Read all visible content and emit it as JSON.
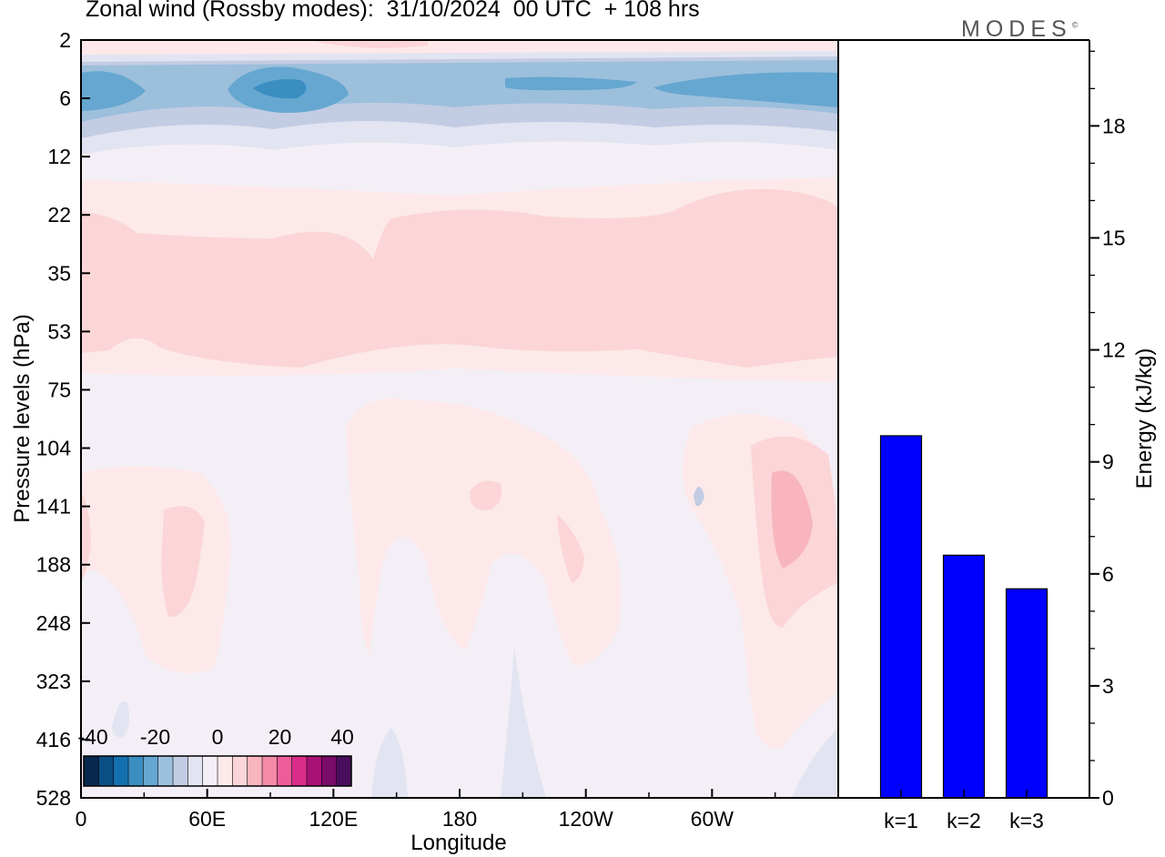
{
  "title": "Zonal wind (Rossby modes):  31/10/2024  00 UTC  + 108 hrs",
  "logo": "MODES",
  "logo_mark": "©",
  "chart_data": [
    {
      "type": "heatmap",
      "title": "Zonal wind (Rossby modes):  31/10/2024  00 UTC  + 108 hrs",
      "xlabel": "Longitude",
      "ylabel": "Pressure levels (hPa)",
      "x_ticks": [
        "0",
        "60E",
        "120E",
        "180",
        "120W",
        "60W"
      ],
      "y_ticks": [
        "2",
        "6",
        "12",
        "22",
        "35",
        "53",
        "75",
        "104",
        "141",
        "188",
        "248",
        "323",
        "416",
        "528"
      ],
      "colorbar": {
        "tick_labels": [
          "-40",
          "-20",
          "0",
          "20",
          "40"
        ],
        "colors": [
          "#08294d",
          "#0a4f84",
          "#1470ae",
          "#3a8ec2",
          "#65a7d0",
          "#9cbfdc",
          "#c2cce3",
          "#e2e4f1",
          "#f4eff6",
          "#fde9ea",
          "#fbd5d7",
          "#f8b5bd",
          "#f28aa8",
          "#ec5d9a",
          "#d92d8a",
          "#a81176",
          "#7b0b69",
          "#4a0e5e"
        ]
      }
    },
    {
      "type": "bar",
      "categories": [
        "k=1",
        "k=2",
        "k=3"
      ],
      "values": [
        9.7,
        6.5,
        5.6
      ],
      "ylabel": "Energy (kJ/kg)",
      "ylim": [
        0,
        20.3
      ],
      "y_ticks": [
        0,
        3,
        6,
        9,
        12,
        15,
        18
      ],
      "bar_color": "#0000ff"
    }
  ]
}
